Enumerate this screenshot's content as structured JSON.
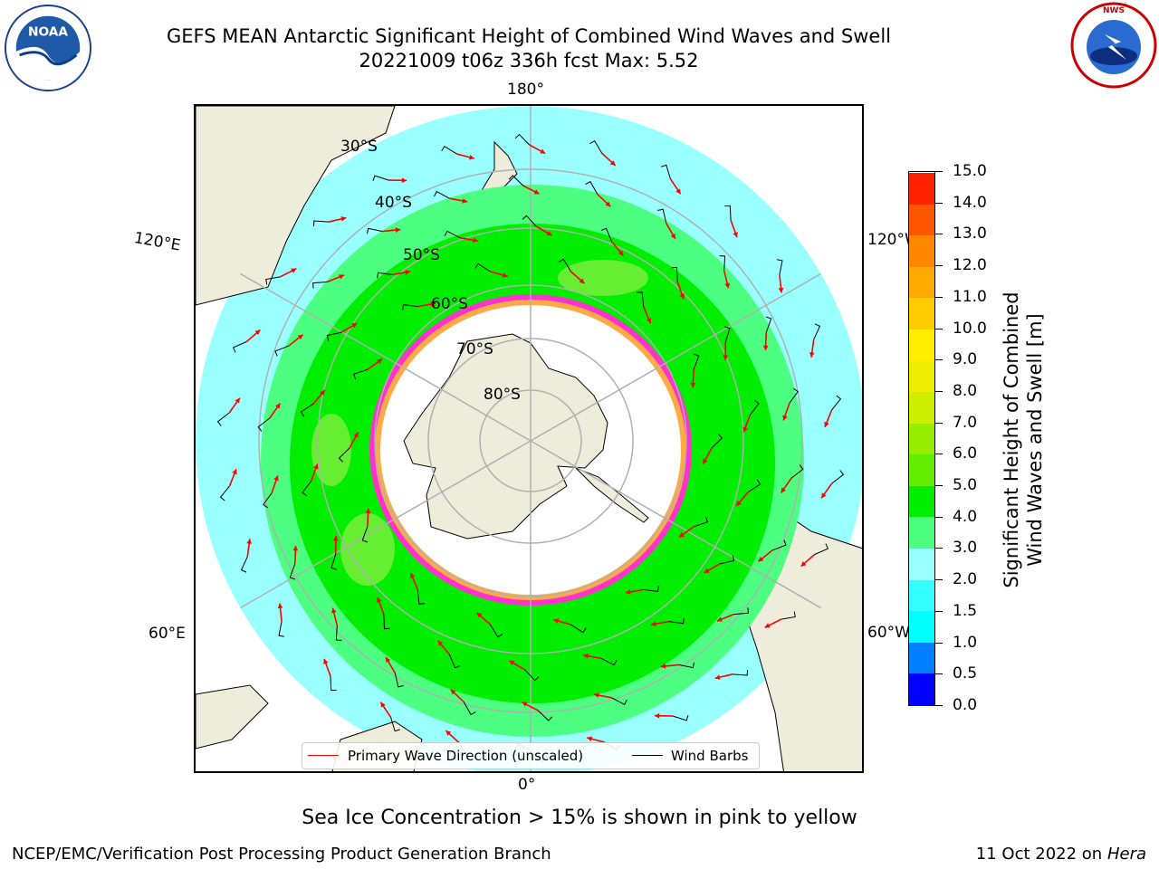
{
  "header": {
    "title_line1": "GEFS MEAN Antarctic Significant Height of Combined Wind Waves and Swell",
    "title_line2": "20221009 t06z 336h fcst   Max: 5.52"
  },
  "map": {
    "projection": "south-polar-stereographic",
    "longitude_labels": {
      "top": "180°",
      "bottom": "0°",
      "upper_left": "120°E",
      "upper_right": "120°W",
      "lower_left": "60°E",
      "lower_right": "60°W"
    },
    "latitude_labels": [
      "30°S",
      "40°S",
      "50°S",
      "60°S",
      "70°S",
      "80°S"
    ],
    "colors": {
      "land": "#eeecda",
      "ocean_0_5_1": "#0080ff",
      "wave_2_3": "#99ffff",
      "wave_3_4": "#4dff80",
      "wave_4_5": "#00ee00",
      "wave_5_6": "#66ee33",
      "sea_ice_edge": "#ff33cc",
      "sea_ice_mid": "#ffaa44",
      "arrow": "#ff0000",
      "barb": "#000000",
      "gridline": "#b0b0b0"
    }
  },
  "legend": {
    "primary_wave_label": "Primary Wave Direction (unscaled)",
    "wind_barbs_label": "Wind Barbs",
    "primary_wave_color": "#ff0000",
    "wind_barbs_color": "#000000"
  },
  "colorbar": {
    "label": "Significant Height of Combined Wind Waves and Swell [m]",
    "label_line1": "Significant Height of Combined",
    "label_line2": "Wind Waves and Swell [m]",
    "ticks": [
      "0.0",
      "0.5",
      "1.0",
      "1.5",
      "2.0",
      "3.0",
      "4.0",
      "5.0",
      "6.0",
      "7.0",
      "8.0",
      "9.0",
      "10.0",
      "11.0",
      "12.0",
      "13.0",
      "14.0",
      "15.0"
    ],
    "colors": [
      "#0000ff",
      "#0080ff",
      "#00ffff",
      "#33ffff",
      "#99ffff",
      "#4dff80",
      "#00ee00",
      "#66ee00",
      "#99ee00",
      "#ccee00",
      "#eeee00",
      "#ffee00",
      "#ffcc00",
      "#ffaa00",
      "#ff8800",
      "#ff5500",
      "#ff2200"
    ]
  },
  "footer": {
    "ice_note": "Sea Ice Concentration > 15% is shown in pink to yellow",
    "branch": "NCEP/EMC/Verification Post Processing Product Generation Branch",
    "date": "11 Oct 2022 on",
    "host": "Hera"
  }
}
